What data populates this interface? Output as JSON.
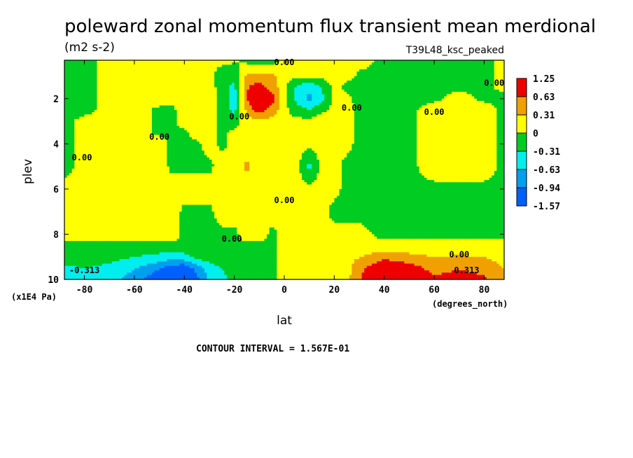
{
  "chart_data": {
    "type": "heatmap",
    "title": "poleward zonal momentum flux transient mean merdional",
    "units": "(m2 s-2)",
    "run_label": "T39L48_ksc_peaked",
    "xlabel": "lat",
    "xunit": "(degrees_north)",
    "ylabel": "plev",
    "yunit": "(x1E4 Pa)",
    "xlim": [
      -88,
      88
    ],
    "ylim": [
      10,
      0.3
    ],
    "x_ticks": [
      -80,
      -60,
      -40,
      -20,
      0,
      20,
      40,
      60,
      80
    ],
    "x_tick_labels": [
      "-80",
      "-60",
      "-40",
      "-20",
      "0",
      "20",
      "40",
      "60",
      "80"
    ],
    "y_ticks": [
      2,
      4,
      6,
      8,
      10
    ],
    "y_tick_labels": [
      "2",
      "4",
      "6",
      "8",
      "10"
    ],
    "contour_interval_text": "CONTOUR INTERVAL = 1.567E-01",
    "contour_labels": [
      {
        "text": "0.00",
        "x": 0,
        "y": 0.4
      },
      {
        "text": "0.00",
        "x": -18,
        "y": 2.8
      },
      {
        "text": "0.00",
        "x": 27,
        "y": 2.4
      },
      {
        "text": "0.00",
        "x": 60,
        "y": 2.6
      },
      {
        "text": "0.00",
        "x": 84,
        "y": 1.3
      },
      {
        "text": "0.00",
        "x": -50,
        "y": 3.7
      },
      {
        "text": "0.00",
        "x": -81,
        "y": 4.6
      },
      {
        "text": "0.00",
        "x": 0,
        "y": 6.5
      },
      {
        "text": "0.00",
        "x": -21,
        "y": 8.2
      },
      {
        "text": "0.00",
        "x": 70,
        "y": 8.9
      },
      {
        "text": "-0.313",
        "x": -80,
        "y": 9.6
      },
      {
        "text": "0.313",
        "x": 73,
        "y": 9.6
      }
    ],
    "legend": {
      "labels": [
        "1.25",
        "0.63",
        "0.31",
        "0",
        "-0.31",
        "-0.63",
        "-0.94",
        "-1.57"
      ],
      "colors": [
        "#ee0000",
        "#f0a000",
        "#ffff00",
        "#00cc22",
        "#00eeee",
        "#00a0ee",
        "#0060ff"
      ]
    },
    "x": [
      -88,
      -80,
      -70,
      -60,
      -50,
      -45,
      -40,
      -35,
      -30,
      -25,
      -20,
      -15,
      -10,
      -5,
      0,
      5,
      10,
      15,
      20,
      25,
      30,
      40,
      50,
      60,
      70,
      80,
      88
    ],
    "y": [
      0.3,
      1,
      1.5,
      2,
      2.5,
      3,
      3.5,
      4,
      5,
      6,
      7,
      8,
      8.5,
      9,
      9.5,
      10
    ],
    "z": [
      [
        -0.2,
        -0.2,
        0.2,
        0.2,
        0.2,
        0.2,
        0.2,
        0.1,
        0.05,
        0.05,
        0.05,
        -0.1,
        -0.2,
        -0.15,
        0.1,
        0.2,
        0.2,
        0.2,
        0.1,
        0.1,
        0.1,
        -0.05,
        -0.1,
        -0.1,
        -0.1,
        -0.1,
        0.1
      ],
      [
        -0.2,
        -0.2,
        0.2,
        0.2,
        0.2,
        0.2,
        0.2,
        0.1,
        0.05,
        -0.1,
        -0.2,
        0.4,
        0.4,
        0.4,
        0.1,
        0.1,
        0.1,
        0.1,
        0.1,
        0.1,
        -0.05,
        -0.1,
        -0.1,
        -0.1,
        -0.1,
        -0.1,
        0.1
      ],
      [
        -0.2,
        -0.2,
        0.2,
        0.2,
        0.2,
        0.2,
        0.2,
        0.1,
        0.2,
        -0.2,
        -0.4,
        0.6,
        0.8,
        0.5,
        0.1,
        -0.4,
        -0.6,
        -0.3,
        0.1,
        -0.1,
        -0.1,
        -0.1,
        -0.1,
        -0.1,
        -0.1,
        -0.1,
        0.1
      ],
      [
        -0.2,
        -0.2,
        0.2,
        0.2,
        0.2,
        0.1,
        0.2,
        0.2,
        0.2,
        -0.1,
        -0.5,
        0.6,
        1.3,
        0.8,
        0.1,
        -0.4,
        -0.7,
        -0.4,
        0.1,
        0.1,
        -0.15,
        -0.1,
        -0.1,
        -0.1,
        0.2,
        -0.1,
        -0.1
      ],
      [
        -0.2,
        -0.2,
        0.2,
        0.2,
        -0.1,
        -0.1,
        0.2,
        0.2,
        0.2,
        -0.1,
        -0.4,
        0.4,
        0.8,
        0.5,
        0.1,
        -0.2,
        -0.3,
        -0.1,
        0.1,
        0.2,
        -0.1,
        -0.1,
        -0.1,
        0.2,
        0.2,
        0.2,
        -0.1
      ],
      [
        -0.2,
        0.2,
        0.2,
        0.2,
        -0.1,
        -0.1,
        0.2,
        0.2,
        0.2,
        -0.1,
        -0.2,
        0.2,
        0.2,
        0.2,
        0.1,
        0.1,
        0.1,
        0.2,
        0.1,
        0.2,
        -0.1,
        -0.1,
        -0.1,
        0.2,
        0.2,
        0.2,
        -0.1
      ],
      [
        -0.2,
        0.2,
        0.2,
        0.2,
        -0.1,
        -0.1,
        -0.1,
        0.2,
        0.2,
        -0.1,
        0.1,
        0.2,
        0.2,
        0.2,
        0.1,
        0.1,
        0.1,
        0.1,
        0.1,
        0.1,
        -0.1,
        -0.1,
        -0.1,
        0.2,
        0.2,
        0.2,
        -0.1
      ],
      [
        -0.2,
        0.2,
        0.2,
        0.2,
        0.2,
        -0.1,
        -0.1,
        -0.1,
        0.2,
        -0.1,
        0.1,
        0.2,
        0.2,
        0.2,
        0.1,
        0.1,
        0.1,
        0.1,
        0.1,
        0.1,
        -0.1,
        -0.1,
        -0.1,
        0.2,
        0.2,
        0.2,
        -0.1
      ],
      [
        -0.2,
        0.2,
        0.2,
        0.2,
        0.2,
        -0.1,
        -0.1,
        -0.1,
        -0.1,
        0.2,
        0.2,
        0.35,
        0.2,
        0.2,
        0.1,
        0.1,
        -0.4,
        0.1,
        0.1,
        -0.1,
        -0.1,
        -0.1,
        -0.1,
        0.2,
        0.2,
        0.2,
        -0.1
      ],
      [
        0.2,
        0.2,
        0.2,
        0.2,
        0.2,
        0.2,
        0.2,
        0.2,
        0.2,
        0.2,
        0.2,
        0.2,
        0.2,
        0.2,
        0.1,
        0.1,
        0.1,
        0.1,
        0.1,
        -0.1,
        -0.1,
        -0.1,
        -0.1,
        -0.1,
        -0.1,
        -0.1,
        -0.1
      ],
      [
        0.2,
        0.2,
        0.2,
        0.2,
        0.2,
        0.2,
        -0.1,
        -0.1,
        -0.1,
        0.2,
        0.2,
        0.2,
        0.2,
        0.2,
        0.1,
        0.1,
        0.1,
        0.1,
        -0.1,
        -0.1,
        -0.1,
        -0.1,
        -0.1,
        -0.1,
        -0.1,
        -0.1,
        -0.1
      ],
      [
        0.2,
        0.2,
        0.2,
        0.2,
        0.2,
        0.2,
        -0.1,
        -0.1,
        -0.1,
        -0.1,
        -0.1,
        0.2,
        0.2,
        -0.1,
        0.1,
        0.1,
        0.1,
        0.1,
        0.1,
        0.1,
        0.1,
        -0.1,
        -0.1,
        -0.1,
        -0.1,
        -0.1,
        -0.1
      ],
      [
        -0.1,
        -0.1,
        -0.1,
        -0.1,
        -0.1,
        -0.1,
        -0.1,
        -0.1,
        -0.1,
        -0.1,
        -0.1,
        -0.1,
        -0.1,
        -0.1,
        0.1,
        0.1,
        0.1,
        0.1,
        0.1,
        0.1,
        0.1,
        0.1,
        0.1,
        0.1,
        0.1,
        0.1,
        0.1
      ],
      [
        -0.1,
        -0.1,
        -0.2,
        -0.3,
        -0.4,
        -0.5,
        -0.4,
        -0.2,
        -0.1,
        -0.1,
        -0.1,
        -0.1,
        -0.1,
        -0.1,
        0.1,
        0.1,
        0.1,
        0.1,
        0.1,
        0.2,
        0.3,
        0.5,
        0.4,
        0.3,
        0.35,
        0.3,
        0.2
      ],
      [
        -0.4,
        -0.3,
        -0.4,
        -0.6,
        -0.9,
        -1.1,
        -1.2,
        -0.8,
        -0.5,
        -0.3,
        -0.2,
        -0.2,
        -0.1,
        -0.1,
        0.1,
        0.1,
        0.1,
        0.1,
        0.1,
        0.2,
        0.5,
        1.0,
        0.8,
        0.5,
        0.6,
        0.5,
        0.3
      ],
      [
        -0.4,
        -0.4,
        -0.5,
        -0.8,
        -1.2,
        -1.5,
        -1.5,
        -1.0,
        -0.6,
        -0.4,
        -0.2,
        -0.2,
        -0.1,
        -0.1,
        0.1,
        0.1,
        0.1,
        0.1,
        0.1,
        0.2,
        0.6,
        1.3,
        1.0,
        0.7,
        0.8,
        0.7,
        0.4
      ]
    ]
  }
}
